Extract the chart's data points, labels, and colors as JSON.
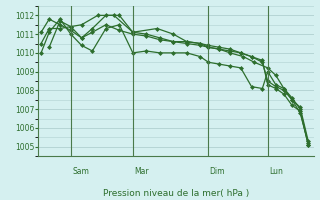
{
  "bg_color": "#d5f0f0",
  "grid_color": "#b0d0d0",
  "line_color": "#2d6e2d",
  "marker_color": "#2d6e2d",
  "xlabel": "Pression niveau de la mer( hPa )",
  "xlabel_color": "#2d6e2d",
  "tick_color": "#2d6e2d",
  "ylim": [
    1004.5,
    1012.5
  ],
  "yticks": [
    1005,
    1006,
    1007,
    1008,
    1009,
    1010,
    1011,
    1012
  ],
  "vline_positions": [
    0.12,
    0.35,
    0.63,
    0.85
  ],
  "vline_labels": [
    "Sam",
    "Mar",
    "Dim",
    "Lun"
  ],
  "series": [
    {
      "x": [
        0.01,
        0.04,
        0.08,
        0.12,
        0.16,
        0.2,
        0.25,
        0.3,
        0.35,
        0.4,
        0.45,
        0.5,
        0.55,
        0.6,
        0.63,
        0.67,
        0.71,
        0.75,
        0.79,
        0.83,
        0.85,
        0.88,
        0.91,
        0.94,
        0.97,
        1.0
      ],
      "y": [
        1010.0,
        1011.1,
        1011.8,
        1011.0,
        1010.4,
        1010.1,
        1011.3,
        1011.5,
        1010.0,
        1010.1,
        1010.0,
        1010.0,
        1010.0,
        1009.8,
        1009.5,
        1009.4,
        1009.3,
        1009.2,
        1008.2,
        1008.1,
        1009.0,
        1008.3,
        1008.1,
        1007.6,
        1007.0,
        1005.1
      ]
    },
    {
      "x": [
        0.01,
        0.04,
        0.08,
        0.12,
        0.16,
        0.2,
        0.25,
        0.3,
        0.35,
        0.4,
        0.45,
        0.5,
        0.55,
        0.6,
        0.63,
        0.67,
        0.71,
        0.75,
        0.79,
        0.83,
        0.85,
        0.88,
        0.91,
        0.94,
        0.97,
        1.0
      ],
      "y": [
        1011.1,
        1011.8,
        1011.5,
        1011.2,
        1010.8,
        1011.3,
        1012.0,
        1012.0,
        1011.1,
        1011.0,
        1010.8,
        1010.6,
        1010.5,
        1010.4,
        1010.3,
        1010.2,
        1010.1,
        1010.0,
        1009.8,
        1009.6,
        1008.3,
        1008.1,
        1007.8,
        1007.2,
        1006.9,
        1005.1
      ]
    },
    {
      "x": [
        0.01,
        0.04,
        0.08,
        0.12,
        0.16,
        0.2,
        0.25,
        0.3,
        0.35,
        0.4,
        0.45,
        0.5,
        0.55,
        0.6,
        0.63,
        0.67,
        0.71,
        0.75,
        0.79,
        0.83,
        0.85,
        0.88,
        0.91,
        0.94,
        0.97,
        1.0
      ],
      "y": [
        1010.5,
        1011.3,
        1011.3,
        1011.4,
        1010.8,
        1011.1,
        1011.5,
        1011.2,
        1011.0,
        1010.9,
        1010.7,
        1010.6,
        1010.6,
        1010.5,
        1010.4,
        1010.3,
        1010.2,
        1010.0,
        1009.8,
        1009.5,
        1008.5,
        1008.2,
        1008.0,
        1007.5,
        1007.1,
        1005.3
      ]
    },
    {
      "x": [
        0.04,
        0.08,
        0.12,
        0.16,
        0.22,
        0.28,
        0.35,
        0.44,
        0.5,
        0.55,
        0.6,
        0.63,
        0.67,
        0.71,
        0.76,
        0.8,
        0.85,
        0.88,
        0.91,
        0.94,
        0.97,
        1.0
      ],
      "y": [
        1010.3,
        1011.7,
        1011.4,
        1011.5,
        1012.0,
        1012.0,
        1011.1,
        1011.3,
        1011.0,
        1010.6,
        1010.5,
        1010.3,
        1010.2,
        1010.0,
        1009.8,
        1009.5,
        1009.2,
        1008.8,
        1008.1,
        1007.5,
        1006.8,
        1005.2
      ]
    }
  ]
}
